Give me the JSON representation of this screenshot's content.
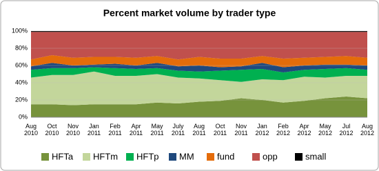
{
  "chart_data": {
    "type": "stacked_area",
    "title": "Percent market volume by trader type",
    "categories": [
      "Aug 2010",
      "Oct 2010",
      "Nov 2010",
      "Jan 2011",
      "Feb 2011",
      "Apr 2011",
      "May 2011",
      "July 2011",
      "Aug 2011",
      "Oct 2011",
      "Nov 2011",
      "Jan 2012",
      "Feb 2012",
      "Apr 2012",
      "May 2012",
      "Jul 2012",
      "Aug 2012"
    ],
    "series": [
      {
        "name": "HFTa",
        "color": "#77933c",
        "values": [
          15,
          15,
          14,
          15,
          15,
          15,
          17,
          16,
          18,
          19,
          22,
          20,
          17,
          19,
          22,
          24,
          22
        ]
      },
      {
        "name": "HFTm",
        "color": "#c3d69b",
        "values": [
          31,
          34,
          35,
          38,
          33,
          33,
          33,
          30,
          27,
          24,
          19,
          24,
          26,
          28,
          24,
          24,
          26
        ]
      },
      {
        "name": "HFTp",
        "color": "#00b050",
        "values": [
          9,
          8,
          8,
          5,
          9,
          8,
          7,
          8,
          8,
          11,
          14,
          12,
          9,
          8,
          10,
          9,
          7
        ]
      },
      {
        "name": "MM",
        "color": "#1f497d",
        "values": [
          4,
          6,
          3,
          3,
          5,
          4,
          6,
          5,
          7,
          4,
          4,
          7,
          6,
          5,
          5,
          4,
          5
        ]
      },
      {
        "name": "fund",
        "color": "#e46c0a",
        "values": [
          8,
          9,
          9,
          9,
          8,
          9,
          8,
          8,
          10,
          10,
          9,
          8,
          10,
          9,
          9,
          10,
          9
        ]
      },
      {
        "name": "opp",
        "color": "#c0504d",
        "values": [
          32,
          27,
          30,
          29,
          29,
          30,
          28,
          32,
          29,
          31,
          31,
          28,
          31,
          30,
          29,
          28,
          30
        ]
      },
      {
        "name": "small",
        "color": "#000000",
        "values": [
          1,
          1,
          1,
          1,
          1,
          1,
          1,
          1,
          1,
          1,
          1,
          1,
          1,
          1,
          1,
          1,
          1
        ]
      }
    ],
    "ylim": [
      0,
      100
    ],
    "yticks": [
      {
        "value": 0,
        "label": "0%"
      },
      {
        "value": 20,
        "label": "20%"
      },
      {
        "value": 40,
        "label": "40%"
      },
      {
        "value": 60,
        "label": "60%"
      },
      {
        "value": 80,
        "label": "80%"
      },
      {
        "value": 100,
        "label": "100%"
      }
    ],
    "grid": true,
    "legend": "bottom"
  }
}
